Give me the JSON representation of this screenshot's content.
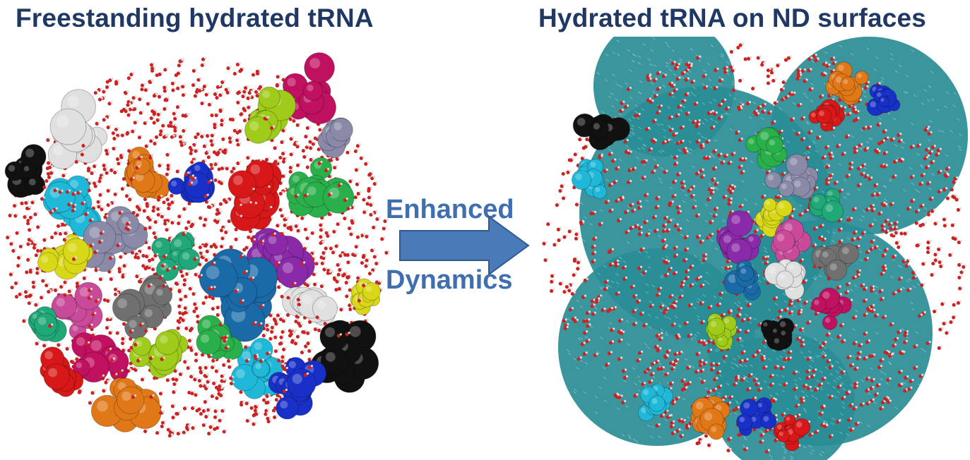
{
  "titles": {
    "left": "Freestanding hydrated tRNA",
    "right": "Hydrated tRNA on ND surfaces"
  },
  "arrow": {
    "top_label": "Enhanced",
    "bottom_label": "Dynamics"
  },
  "colors": {
    "title_text": "#1f3864",
    "arrow_text": "#3f6fb0",
    "arrow_fill": "#4a7ab8",
    "arrow_stroke": "#2f5a94",
    "nanodiamond": "#2a8c95",
    "water_oxygen": "#cc2222",
    "water_hydrogen": "#dddddd"
  },
  "icons": {
    "arrow": "right-arrow-icon"
  }
}
